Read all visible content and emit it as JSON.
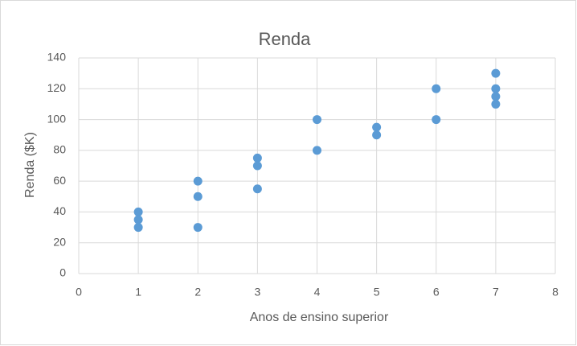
{
  "chart_data": {
    "type": "scatter",
    "title": "Renda",
    "x_label": "Anos de ensino superior",
    "y_label": "Renda ($K)",
    "x": [
      1,
      1,
      1,
      2,
      2,
      2,
      3,
      3,
      3,
      4,
      4,
      5,
      5,
      6,
      6,
      7,
      7,
      7,
      7
    ],
    "y": [
      40,
      35,
      30,
      60,
      50,
      30,
      75,
      70,
      55,
      100,
      80,
      95,
      90,
      120,
      100,
      130,
      120,
      115,
      110
    ],
    "color": "#5b9bd5",
    "xlim": [
      0,
      8
    ],
    "xticks": [
      0,
      1,
      2,
      3,
      4,
      5,
      6,
      7,
      8
    ],
    "ylim": [
      0,
      140
    ],
    "yticks": [
      0,
      20,
      40,
      60,
      80,
      100,
      120,
      140
    ],
    "grid": true
  }
}
